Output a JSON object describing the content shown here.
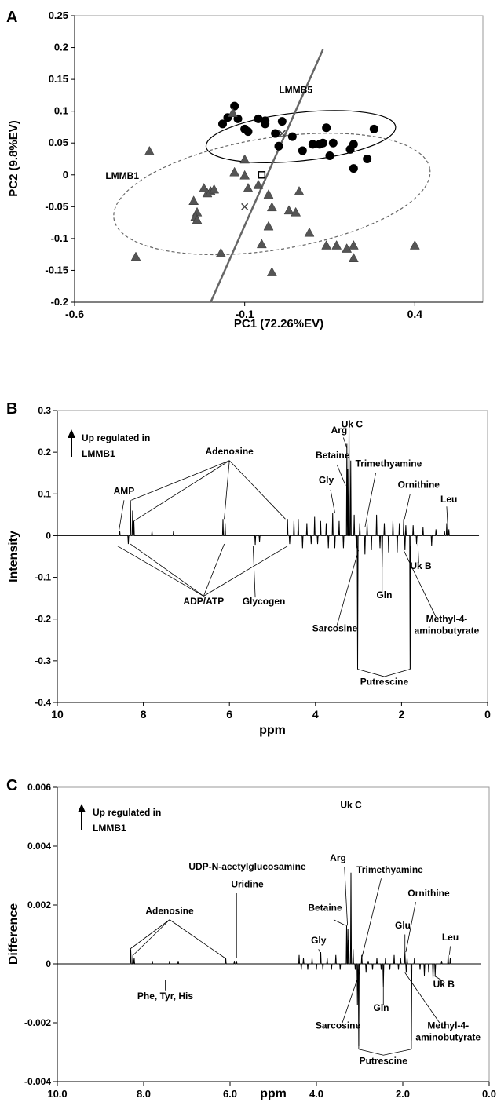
{
  "chart_data": [
    {
      "panel_label": "A",
      "type": "scatter",
      "xlabel": "PC1 (72.26%EV)",
      "ylabel": "PC2 (9.8%EV)",
      "xlim": [
        -0.6,
        0.6
      ],
      "ylim": [
        -0.2,
        0.25
      ],
      "xticks": [
        "-0.6",
        "-0.1",
        "0.4"
      ],
      "xtick_values": [
        -0.6,
        -0.1,
        0.4
      ],
      "yticks": [
        "-0.2",
        "-0.15",
        "-0.1",
        "-0.05",
        "0",
        "0.05",
        "0.1",
        "0.15",
        "0.2",
        "0.25"
      ],
      "ytick_values": [
        -0.2,
        -0.15,
        -0.1,
        -0.05,
        0,
        0.05,
        0.1,
        0.15,
        0.2,
        0.25
      ],
      "grid": false,
      "group_labels": [
        {
          "text": "LMMB5",
          "x": 0.05,
          "y": 0.135
        },
        {
          "text": "LMMB1",
          "x": -0.46,
          "y": 0.0
        }
      ],
      "series": [
        {
          "name": "LMMB5",
          "marker": "circle",
          "color": "#000000",
          "points": [
            [
              -0.165,
              0.08
            ],
            [
              -0.15,
              0.09
            ],
            [
              -0.13,
              0.108
            ],
            [
              -0.12,
              0.088
            ],
            [
              -0.1,
              0.072
            ],
            [
              -0.09,
              0.068
            ],
            [
              -0.06,
              0.088
            ],
            [
              -0.04,
              0.085
            ],
            [
              -0.04,
              0.08
            ],
            [
              -0.01,
              0.065
            ],
            [
              0.01,
              0.084
            ],
            [
              0.0,
              0.045
            ],
            [
              0.04,
              0.06
            ],
            [
              0.07,
              0.038
            ],
            [
              0.1,
              0.048
            ],
            [
              0.12,
              0.048
            ],
            [
              0.13,
              0.05
            ],
            [
              0.14,
              0.074
            ],
            [
              0.15,
              0.03
            ],
            [
              0.16,
              0.05
            ],
            [
              0.21,
              0.04
            ],
            [
              0.22,
              0.048
            ],
            [
              0.26,
              0.025
            ],
            [
              0.28,
              0.072
            ],
            [
              0.22,
              0.01
            ]
          ]
        },
        {
          "name": "LMMB1",
          "marker": "triangle",
          "color": "#555555",
          "points": [
            [
              -0.135,
              0.098
            ],
            [
              -0.38,
              0.038
            ],
            [
              -0.22,
              -0.02
            ],
            [
              -0.21,
              -0.028
            ],
            [
              -0.2,
              -0.025
            ],
            [
              -0.19,
              -0.022
            ],
            [
              -0.25,
              -0.04
            ],
            [
              -0.24,
              -0.058
            ],
            [
              -0.245,
              -0.065
            ],
            [
              -0.24,
              -0.07
            ],
            [
              -0.1,
              0.025
            ],
            [
              -0.1,
              0.0
            ],
            [
              -0.13,
              0.005
            ],
            [
              -0.09,
              -0.02
            ],
            [
              -0.06,
              -0.015
            ],
            [
              -0.03,
              -0.03
            ],
            [
              -0.02,
              -0.05
            ],
            [
              -0.03,
              -0.08
            ],
            [
              -0.05,
              -0.108
            ],
            [
              -0.02,
              -0.152
            ],
            [
              0.03,
              -0.055
            ],
            [
              0.05,
              -0.058
            ],
            [
              0.06,
              -0.025
            ],
            [
              0.09,
              -0.09
            ],
            [
              0.14,
              -0.11
            ],
            [
              0.17,
              -0.11
            ],
            [
              0.2,
              -0.115
            ],
            [
              0.22,
              -0.13
            ],
            [
              0.22,
              -0.11
            ],
            [
              0.4,
              -0.11
            ],
            [
              -0.42,
              -0.128
            ],
            [
              -0.17,
              -0.122
            ]
          ]
        }
      ],
      "ellipses": [
        {
          "group": "LMMB5",
          "style": "solid",
          "center": [
            0.065,
            0.06
          ],
          "semi_axes": [
            0.28,
            0.038
          ],
          "angle_deg": -6
        },
        {
          "group": "LMMB1",
          "style": "dashed",
          "center": [
            -0.02,
            -0.03
          ],
          "semi_axes": [
            0.47,
            0.088
          ],
          "angle_deg": -9
        }
      ],
      "line": {
        "from": [
          -0.2,
          -0.2
        ],
        "to": [
          0.13,
          0.197
        ],
        "color": "#666666"
      },
      "x_markers": [
        [
          -0.1,
          -0.05
        ],
        [
          0.01,
          0.065
        ]
      ],
      "centroid_marker": [
        -0.05,
        0.0
      ]
    },
    {
      "panel_label": "B",
      "type": "line",
      "xlabel": "ppm",
      "ylabel": "Intensity",
      "xlim": [
        10,
        0
      ],
      "ylim": [
        -0.4,
        0.3
      ],
      "xticks": [
        "10",
        "8",
        "6",
        "4",
        "2",
        "0"
      ],
      "xtick_values": [
        10,
        8,
        6,
        4,
        2,
        0
      ],
      "yticks": [
        "-0.4",
        "-0.3",
        "-0.2",
        "-0.1",
        "0",
        "0.1",
        "0.2",
        "0.3"
      ],
      "ytick_values": [
        -0.4,
        -0.3,
        -0.2,
        -0.1,
        0,
        0.1,
        0.2,
        0.3
      ],
      "legend_note": "Up regulated in",
      "legend_group": "LMMB1",
      "peaks": [
        [
          8.55,
          0.012
        ],
        [
          8.3,
          0.085
        ],
        [
          8.25,
          0.06
        ],
        [
          8.22,
          0.035
        ],
        [
          8.35,
          -0.02
        ],
        [
          7.8,
          0.01
        ],
        [
          7.3,
          0.01
        ],
        [
          6.15,
          0.04
        ],
        [
          6.1,
          0.03
        ],
        [
          5.4,
          -0.022
        ],
        [
          5.3,
          -0.015
        ],
        [
          4.65,
          0.04
        ],
        [
          4.6,
          -0.02
        ],
        [
          4.5,
          0.035
        ],
        [
          4.4,
          0.04
        ],
        [
          4.3,
          -0.03
        ],
        [
          4.2,
          0.03
        ],
        [
          4.1,
          -0.02
        ],
        [
          4.02,
          0.045
        ],
        [
          3.95,
          -0.02
        ],
        [
          3.88,
          0.035
        ],
        [
          3.75,
          0.03
        ],
        [
          3.7,
          -0.03
        ],
        [
          3.6,
          0.055
        ],
        [
          3.55,
          -0.03
        ],
        [
          3.45,
          0.035
        ],
        [
          3.35,
          -0.03
        ],
        [
          3.27,
          0.22
        ],
        [
          3.25,
          0.16
        ],
        [
          3.22,
          0.27
        ],
        [
          3.18,
          0.18
        ],
        [
          3.1,
          0.05
        ],
        [
          3.05,
          -0.03
        ],
        [
          3.02,
          -0.32
        ],
        [
          2.97,
          0.03
        ],
        [
          2.85,
          -0.045
        ],
        [
          2.8,
          0.03
        ],
        [
          2.7,
          -0.035
        ],
        [
          2.58,
          0.05
        ],
        [
          2.5,
          -0.03
        ],
        [
          2.45,
          -0.075
        ],
        [
          2.4,
          0.03
        ],
        [
          2.3,
          -0.04
        ],
        [
          2.2,
          0.035
        ],
        [
          2.1,
          -0.04
        ],
        [
          2.05,
          0.03
        ],
        [
          1.95,
          0.04
        ],
        [
          1.92,
          -0.035
        ],
        [
          1.9,
          0.025
        ],
        [
          1.8,
          -0.32
        ],
        [
          1.73,
          0.025
        ],
        [
          1.65,
          -0.02
        ],
        [
          1.5,
          0.02
        ],
        [
          1.3,
          -0.025
        ],
        [
          1.2,
          0.015
        ],
        [
          1.0,
          0.01
        ],
        [
          0.95,
          0.03
        ],
        [
          0.9,
          0.015
        ]
      ],
      "annotations": [
        {
          "text": "AMP",
          "x": 8.45,
          "y": 0.1
        },
        {
          "text": "Adenosine",
          "x": 6.0,
          "y": 0.195
        },
        {
          "text": "ADP/ATP",
          "x": 6.6,
          "y": -0.165
        },
        {
          "text": "Glycogen",
          "x": 5.2,
          "y": -0.165
        },
        {
          "text": "Gly",
          "x": 3.75,
          "y": 0.126
        },
        {
          "text": "Betaine",
          "x": 3.6,
          "y": 0.185
        },
        {
          "text": "Arg",
          "x": 3.45,
          "y": 0.245
        },
        {
          "text": "Uk C",
          "x": 3.15,
          "y": 0.26
        },
        {
          "text": "Trimethyamine",
          "x": 2.3,
          "y": 0.165
        },
        {
          "text": "Ornithine",
          "x": 1.6,
          "y": 0.115
        },
        {
          "text": "Leu",
          "x": 0.9,
          "y": 0.08
        },
        {
          "text": "Uk B",
          "x": 1.55,
          "y": -0.08
        },
        {
          "text": "Gln",
          "x": 2.4,
          "y": -0.15
        },
        {
          "text": "Sarcosine",
          "x": 3.55,
          "y": -0.23
        },
        {
          "text": "Methyl-4-",
          "x": 0.95,
          "y": -0.207
        },
        {
          "text": "aminobutyrate",
          "x": 0.95,
          "y": -0.235
        },
        {
          "text": "Putrescine",
          "x": 2.4,
          "y": -0.358
        }
      ]
    },
    {
      "panel_label": "C",
      "type": "line",
      "xlabel": "ppm",
      "ylabel": "Difference",
      "xlim": [
        10,
        0
      ],
      "ylim": [
        -0.004,
        0.006
      ],
      "xticks": [
        "10.0",
        "8.0",
        "6.0",
        "4.0",
        "2.0",
        "0.0"
      ],
      "xtick_values": [
        10,
        8,
        6,
        4,
        2,
        0
      ],
      "yticks": [
        "-0.004",
        "-0.002",
        "0",
        "0.002",
        "0.004",
        "0.006"
      ],
      "ytick_values": [
        -0.004,
        -0.002,
        0,
        0.002,
        0.004,
        0.006
      ],
      "legend_note": "Up regulated in",
      "legend_group": "LMMB1",
      "peaks": [
        [
          8.3,
          0.0005
        ],
        [
          8.25,
          0.0003
        ],
        [
          8.22,
          0.0002
        ],
        [
          7.8,
          0.0001
        ],
        [
          7.4,
          0.0001
        ],
        [
          7.2,
          0.0001
        ],
        [
          6.1,
          0.0002
        ],
        [
          5.9,
          0.0001
        ],
        [
          5.85,
          0.0001
        ],
        [
          4.4,
          0.0003
        ],
        [
          4.35,
          -0.0002
        ],
        [
          4.3,
          0.0002
        ],
        [
          4.2,
          -0.0002
        ],
        [
          4.1,
          0.0002
        ],
        [
          4.0,
          -0.0002
        ],
        [
          3.9,
          0.0004
        ],
        [
          3.85,
          -0.0002
        ],
        [
          3.75,
          0.0002
        ],
        [
          3.65,
          -0.0002
        ],
        [
          3.55,
          0.0003
        ],
        [
          3.45,
          -0.0002
        ],
        [
          3.3,
          0.0013
        ],
        [
          3.27,
          0.0012
        ],
        [
          3.25,
          0.0008
        ],
        [
          3.2,
          0.0031
        ],
        [
          3.15,
          0.0005
        ],
        [
          3.1,
          -0.0002
        ],
        [
          3.05,
          -0.0014
        ],
        [
          3.02,
          -0.0028
        ],
        [
          2.95,
          0.0003
        ],
        [
          2.85,
          -0.0003
        ],
        [
          2.8,
          0.0001
        ],
        [
          2.7,
          -0.0002
        ],
        [
          2.6,
          0.0002
        ],
        [
          2.5,
          -0.0002
        ],
        [
          2.45,
          -0.0008
        ],
        [
          2.4,
          0.0002
        ],
        [
          2.3,
          -0.0002
        ],
        [
          2.2,
          0.0003
        ],
        [
          2.1,
          -0.0002
        ],
        [
          2.05,
          0.0002
        ],
        [
          1.95,
          0.0004
        ],
        [
          1.92,
          -0.0003
        ],
        [
          1.9,
          0.0002
        ],
        [
          1.8,
          -0.0026
        ],
        [
          1.73,
          0.0002
        ],
        [
          1.6,
          -0.0002
        ],
        [
          1.5,
          -0.0004
        ],
        [
          1.4,
          -0.0003
        ],
        [
          1.3,
          -0.0005
        ],
        [
          1.25,
          -0.0004
        ],
        [
          1.1,
          0.0001
        ],
        [
          0.95,
          0.0003
        ],
        [
          0.9,
          0.0002
        ]
      ],
      "annotations": [
        {
          "text": "Adenosine",
          "x": 7.4,
          "y": 0.0017
        },
        {
          "text": "UDP-N-acetylglucosamine",
          "x": 5.6,
          "y": 0.0032
        },
        {
          "text": "Uridine",
          "x": 5.6,
          "y": 0.0026
        },
        {
          "text": "Phe, Tyr, His",
          "x": 7.5,
          "y": -0.0012
        },
        {
          "text": "Gly",
          "x": 3.95,
          "y": 0.0007
        },
        {
          "text": "Betaine",
          "x": 3.8,
          "y": 0.0018
        },
        {
          "text": "Arg",
          "x": 3.5,
          "y": 0.0035
        },
        {
          "text": "Uk C",
          "x": 3.2,
          "y": 0.0053
        },
        {
          "text": "Trimethyamine",
          "x": 2.3,
          "y": 0.0031
        },
        {
          "text": "Ornithine",
          "x": 1.4,
          "y": 0.0023
        },
        {
          "text": "Glu",
          "x": 2.0,
          "y": 0.0012
        },
        {
          "text": "Leu",
          "x": 0.9,
          "y": 0.0008
        },
        {
          "text": "Uk B",
          "x": 1.05,
          "y": -0.0008
        },
        {
          "text": "Gln",
          "x": 2.5,
          "y": -0.0016
        },
        {
          "text": "Sarcosine",
          "x": 3.5,
          "y": -0.0022
        },
        {
          "text": "Methyl-4-",
          "x": 0.95,
          "y": -0.0022
        },
        {
          "text": "aminobutyrate",
          "x": 0.95,
          "y": -0.0026
        },
        {
          "text": "Putrescine",
          "x": 2.45,
          "y": -0.0034
        }
      ]
    }
  ]
}
